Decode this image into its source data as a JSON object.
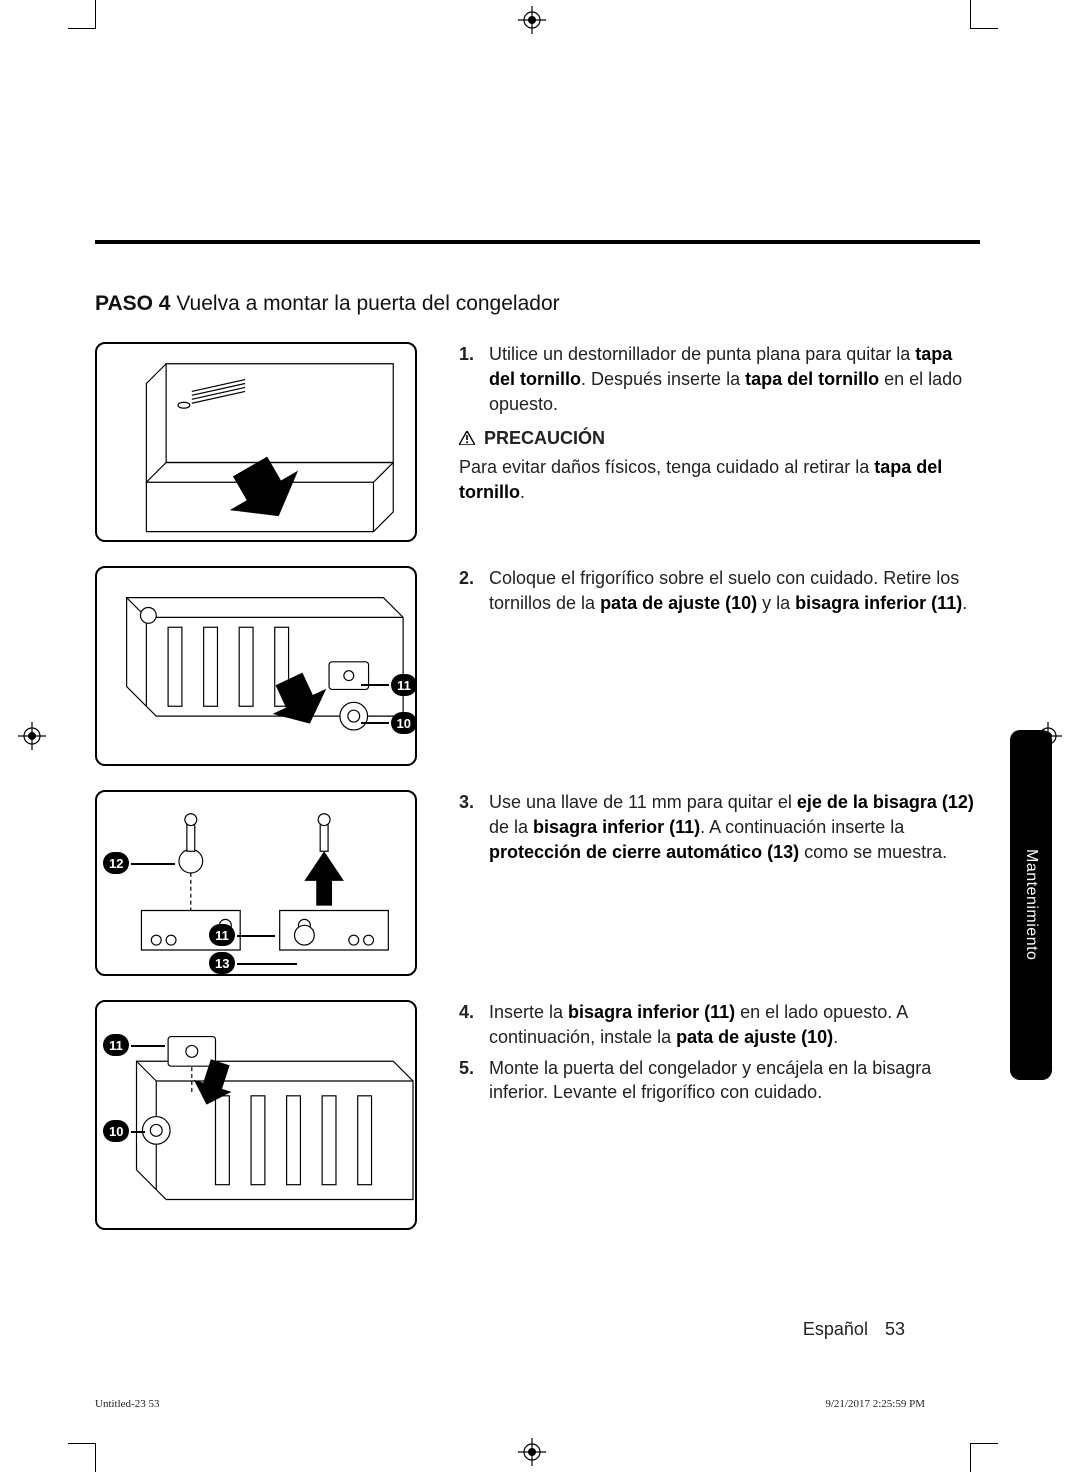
{
  "step": {
    "label": "PASO  4",
    "title": "Vuelva a montar la puerta del congelador"
  },
  "blocks": {
    "s1": {
      "num": "1.",
      "html": "Utilice un destornillador de punta plana para quitar la <b>tapa del tornillo</b>. Después inserte la <b>tapa del tornillo</b> en el lado opuesto."
    },
    "caution": {
      "label": "PRECAUCIÓN",
      "html": "Para evitar daños físicos, tenga cuidado al retirar la <b>tapa del tornillo</b>."
    },
    "s2": {
      "num": "2.",
      "html": "Coloque el frigorífico sobre el suelo con cuidado. Retire los tornillos de la <b>pata de ajuste (10)</b> y la <b>bisagra inferior (11)</b>."
    },
    "s3": {
      "num": "3.",
      "html": "Use una llave de 11 mm para quitar el <b>eje de la bisagra (12)</b> de la <b>bisagra inferior (11)</b>. A continuación inserte la <b>protección de cierre automático (13)</b> como se muestra."
    },
    "s4": {
      "num": "4.",
      "html": "Inserte la <b>bisagra inferior (11)</b> en el lado opuesto. A continuación, instale la <b>pata de ajuste (10)</b>."
    },
    "s5": {
      "num": "5.",
      "html": "Monte la puerta del congelador y encájela en la bisagra inferior. Levante el frigorífico con cuidado."
    }
  },
  "callouts": {
    "fig2": {
      "a": "11",
      "b": "10"
    },
    "fig3": {
      "a": "12",
      "b": "11",
      "c": "13"
    },
    "fig4": {
      "a": "11",
      "b": "10"
    }
  },
  "sidetab": "Mantenimiento",
  "footer": {
    "lang": "Español",
    "page": "53",
    "left": "Untitled-23   53",
    "right": "9/21/2017   2:25:59 PM"
  }
}
